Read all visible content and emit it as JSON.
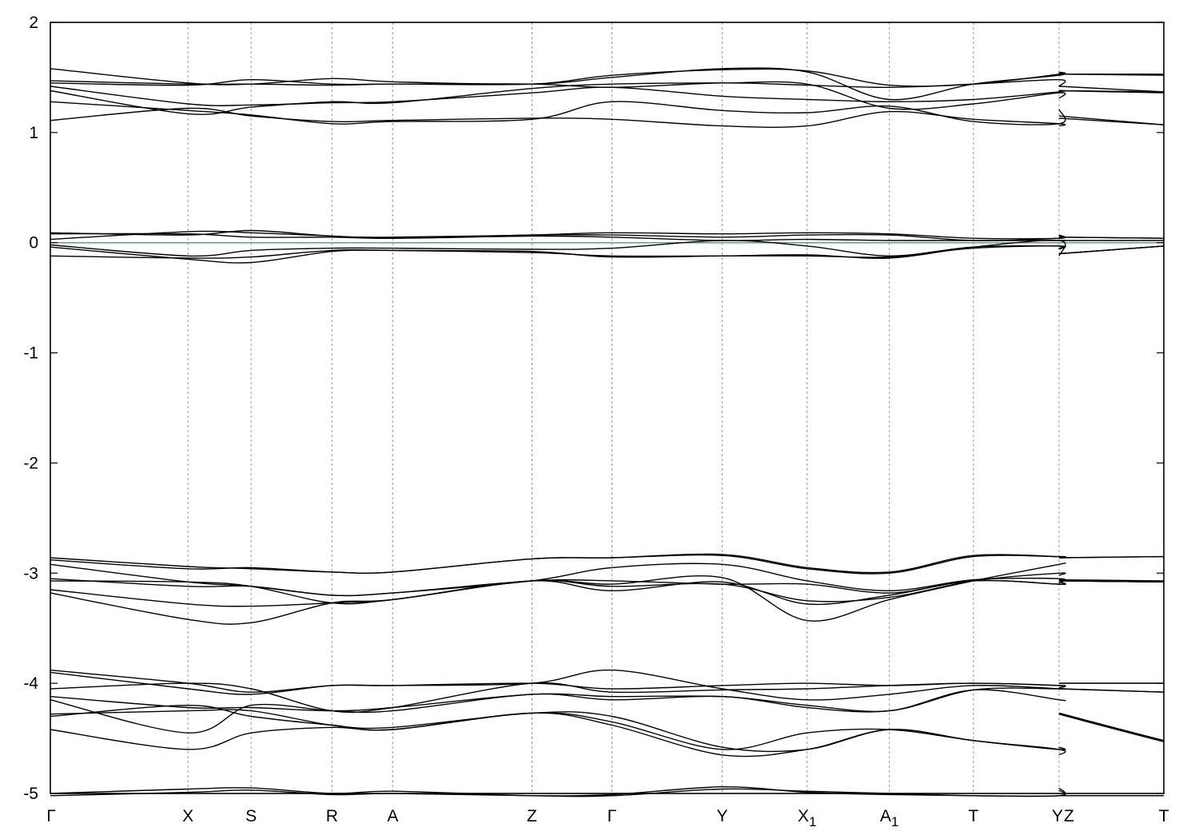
{
  "chart_data": {
    "type": "line",
    "title": "",
    "xlabel": "",
    "ylabel": "",
    "ylim": [
      -5,
      2
    ],
    "yticks": [
      -5,
      -4,
      -3,
      -2,
      -1,
      0,
      1,
      2
    ],
    "ytick_labels": [
      "-5",
      "-4",
      "-3",
      "-2",
      "-1",
      "0",
      "1",
      "2"
    ],
    "fermi_level": 0,
    "fermi_line_color": "#3aa8b8",
    "band_color": "#000000",
    "grid": "vertical dashed lines at high-symmetry points",
    "high_symmetry_points": [
      {
        "label": "Γ",
        "sub": "",
        "k": 0.0
      },
      {
        "label": "X",
        "sub": "",
        "k": 0.1236
      },
      {
        "label": "S",
        "sub": "",
        "k": 0.1803
      },
      {
        "label": "R",
        "sub": "",
        "k": 0.2529
      },
      {
        "label": "A",
        "sub": "",
        "k": 0.3075
      },
      {
        "label": "Z",
        "sub": "",
        "k": 0.4325
      },
      {
        "label": "Γ",
        "sub": "",
        "k": 0.5043
      },
      {
        "label": "Y",
        "sub": "",
        "k": 0.6034
      },
      {
        "label": "X",
        "sub": "1",
        "k": 0.6796
      },
      {
        "label": "A",
        "sub": "1",
        "k": 0.7535
      },
      {
        "label": "T",
        "sub": "",
        "k": 0.829
      },
      {
        "label": "Y",
        "sub": "",
        "k": 0.9059
      },
      {
        "label": "Z",
        "sub": "",
        "k": 0.9059
      },
      {
        "label": "T",
        "sub": "",
        "k": 1.0
      }
    ],
    "segment_break_k": 0.9059,
    "series": [
      {
        "values": [
          1.58,
          1.45,
          1.44,
          1.49,
          1.46,
          1.44,
          1.5,
          1.58,
          1.55,
          1.3,
          1.44,
          1.52,
          1.55
        ],
        "tail": [
          1.53,
          1.53
        ]
      },
      {
        "values": [
          1.47,
          1.44,
          1.44,
          1.43,
          1.44,
          1.44,
          1.52,
          1.57,
          1.56,
          1.43,
          1.44,
          1.53,
          1.54
        ],
        "tail": [
          1.53,
          1.52
        ]
      },
      {
        "values": [
          1.45,
          1.43,
          1.48,
          1.44,
          1.44,
          1.44,
          1.41,
          1.45,
          1.43,
          1.41,
          1.44,
          1.48,
          1.42
        ],
        "tail": [
          1.42,
          1.37
        ]
      },
      {
        "values": [
          1.42,
          1.26,
          1.25,
          1.27,
          1.28,
          1.36,
          1.41,
          1.33,
          1.3,
          1.28,
          1.3,
          1.37,
          1.38
        ],
        "tail": [
          1.38,
          1.37
        ]
      },
      {
        "values": [
          1.38,
          1.17,
          1.23,
          1.28,
          1.27,
          1.4,
          1.44,
          1.45,
          1.44,
          1.22,
          1.26,
          1.36,
          1.31
        ],
        "tail": [
          1.38,
          1.36
        ]
      },
      {
        "values": [
          1.28,
          1.2,
          1.16,
          1.08,
          1.1,
          1.12,
          1.28,
          1.2,
          1.18,
          1.24,
          1.1,
          1.08,
          1.21
        ],
        "tail": [
          1.15,
          1.07
        ]
      },
      {
        "values": [
          1.11,
          1.22,
          1.15,
          1.1,
          1.11,
          1.13,
          1.12,
          1.06,
          1.06,
          1.19,
          1.12,
          1.08,
          1.06
        ],
        "tail": [
          1.13,
          1.07
        ]
      },
      {
        "values": [
          0.09,
          0.07,
          0.11,
          0.06,
          0.05,
          0.07,
          0.09,
          0.08,
          0.09,
          0.08,
          0.04,
          0.04,
          0.07
        ],
        "tail": [
          0.05,
          0.04
        ]
      },
      {
        "values": [
          0.08,
          0.08,
          0.05,
          0.05,
          0.04,
          0.07,
          0.07,
          0.05,
          0.07,
          0.07,
          0.02,
          0.04,
          0.06
        ],
        "tail": [
          0.05,
          0.04
        ]
      },
      {
        "values": [
          0.03,
          0.1,
          0.09,
          0.06,
          0.04,
          0.06,
          0.05,
          0.02,
          0.03,
          0.02,
          0.02,
          0.02,
          0.02
        ],
        "tail": [
          0.02,
          0.02
        ]
      },
      {
        "values": [
          -0.02,
          -0.12,
          -0.07,
          -0.05,
          -0.05,
          -0.06,
          -0.05,
          0.02,
          -0.03,
          -0.12,
          -0.04,
          -0.03,
          -0.05
        ],
        "tail": [
          -0.1,
          -0.03
        ]
      },
      {
        "values": [
          -0.04,
          -0.15,
          -0.18,
          -0.08,
          -0.07,
          -0.08,
          -0.13,
          -0.12,
          -0.11,
          -0.14,
          -0.04,
          0.02,
          -0.12
        ],
        "tail": [
          -0.1,
          -0.03
        ]
      },
      {
        "values": [
          -0.12,
          -0.14,
          -0.13,
          -0.07,
          -0.07,
          -0.09,
          -0.12,
          -0.12,
          -0.12,
          -0.13,
          -0.05,
          -0.03,
          -0.06
        ],
        "tail": [
          -0.1,
          -0.03
        ]
      },
      {
        "values": [
          -2.86,
          -2.94,
          -2.96,
          -2.99,
          -2.99,
          -2.87,
          -2.86,
          -2.83,
          -2.95,
          -2.99,
          -2.84,
          -2.85,
          -2.85
        ],
        "tail": [
          -2.86,
          -2.85
        ]
      },
      {
        "values": [
          -2.88,
          -2.96,
          -2.95,
          -2.99,
          -2.99,
          -2.87,
          -2.86,
          -2.84,
          -2.96,
          -3.0,
          -2.85,
          -2.85,
          -2.85
        ],
        "tail": [
          -2.86,
          -2.85
        ]
      },
      {
        "values": [
          -2.92,
          -3.08,
          -3.12,
          -3.2,
          -3.18,
          -3.07,
          -2.95,
          -2.92,
          -3.07,
          -3.16,
          -3.06,
          -3.05,
          -3.09
        ],
        "tail": [
          -3.06,
          -3.07
        ]
      },
      {
        "values": [
          -3.05,
          -3.12,
          -3.12,
          -3.2,
          -3.18,
          -3.07,
          -3.07,
          -3.1,
          -3.1,
          -3.18,
          -3.07,
          -3.1,
          -3.1
        ],
        "tail": [
          -3.07,
          -3.08
        ]
      },
      {
        "values": [
          -3.07,
          -3.08,
          -3.12,
          -3.27,
          -3.24,
          -3.07,
          -3.16,
          -3.08,
          -3.28,
          -3.2,
          -3.07,
          -3.1,
          -3.08
        ],
        "tail": [
          -3.07,
          -3.08
        ]
      },
      {
        "values": [
          -3.15,
          -3.28,
          -3.3,
          -3.27,
          -3.24,
          -3.07,
          -3.12,
          -3.1,
          -3.25,
          -3.22,
          -3.07,
          -3.0,
          -3.02
        ],
        "tail": [
          -3.07,
          -3.08
        ]
      },
      {
        "values": [
          -3.18,
          -3.42,
          -3.45,
          -3.27,
          -3.24,
          -3.07,
          -3.1,
          -3.04,
          -3.43,
          -3.24,
          -3.07,
          -2.92,
          -2.92
        ],
        "tail": [
          -3.07,
          -3.08
        ]
      },
      {
        "values": [
          -3.88,
          -4.0,
          -4.08,
          -4.02,
          -4.02,
          -4.0,
          -3.88,
          -4.05,
          -4.15,
          -4.1,
          -4.02,
          -4.05,
          -4.05
        ],
        "tail": [
          -4.0,
          -4.0
        ]
      },
      {
        "values": [
          -3.9,
          -4.05,
          -4.1,
          -4.02,
          -4.02,
          -4.0,
          -4.05,
          -4.02,
          -4.0,
          -4.02,
          -4.0,
          -4.02,
          -4.02
        ],
        "tail": [
          -4.0,
          -4.0
        ]
      },
      {
        "values": [
          -4.05,
          -4.0,
          -4.05,
          -4.25,
          -4.22,
          -4.0,
          -4.08,
          -4.06,
          -4.05,
          -4.02,
          -4.0,
          -4.02,
          -4.04
        ],
        "tail": [
          -4.05,
          -4.08
        ]
      },
      {
        "values": [
          -4.12,
          -4.22,
          -4.22,
          -4.25,
          -4.22,
          -4.1,
          -4.12,
          -4.12,
          -4.2,
          -4.25,
          -4.06,
          -4.05,
          -4.05
        ],
        "tail": [
          -4.05,
          -4.08
        ]
      },
      {
        "values": [
          -4.15,
          -4.45,
          -4.2,
          -4.25,
          -4.25,
          -4.1,
          -4.15,
          -4.12,
          -4.22,
          -4.25,
          -4.06,
          -4.15,
          -4.15
        ],
        "tail": [
          -4.27,
          -4.52
        ]
      },
      {
        "values": [
          -4.28,
          -4.25,
          -4.25,
          -4.38,
          -4.4,
          -4.27,
          -4.3,
          -4.58,
          -4.6,
          -4.42,
          -4.52,
          -4.6,
          -4.65
        ],
        "tail": [
          -4.27,
          -4.52
        ]
      },
      {
        "values": [
          -4.3,
          -4.2,
          -4.3,
          -4.38,
          -4.42,
          -4.27,
          -4.35,
          -4.6,
          -4.45,
          -4.42,
          -4.52,
          -4.6,
          -4.58
        ],
        "tail": [
          -4.28,
          -4.53
        ]
      },
      {
        "values": [
          -4.42,
          -4.6,
          -4.45,
          -4.4,
          -4.42,
          -4.27,
          -4.38,
          -4.65,
          -4.6,
          -4.42,
          -4.52,
          -4.6,
          -4.58
        ],
        "tail": [
          -4.28,
          -4.53
        ]
      },
      {
        "values": [
          -5.0,
          -4.96,
          -4.95,
          -5.0,
          -4.98,
          -5.02,
          -5.02,
          -4.96,
          -4.98,
          -5.0,
          -5.02,
          -5.02,
          -4.95
        ],
        "tail": [
          -5.02,
          -5.02
        ]
      },
      {
        "values": [
          -5.02,
          -4.99,
          -4.97,
          -5.01,
          -5.0,
          -5.02,
          -5.01,
          -4.94,
          -4.99,
          -5.01,
          -5.02,
          -5.02,
          -4.97
        ],
        "tail": [
          -5.02,
          -5.02
        ]
      }
    ]
  }
}
